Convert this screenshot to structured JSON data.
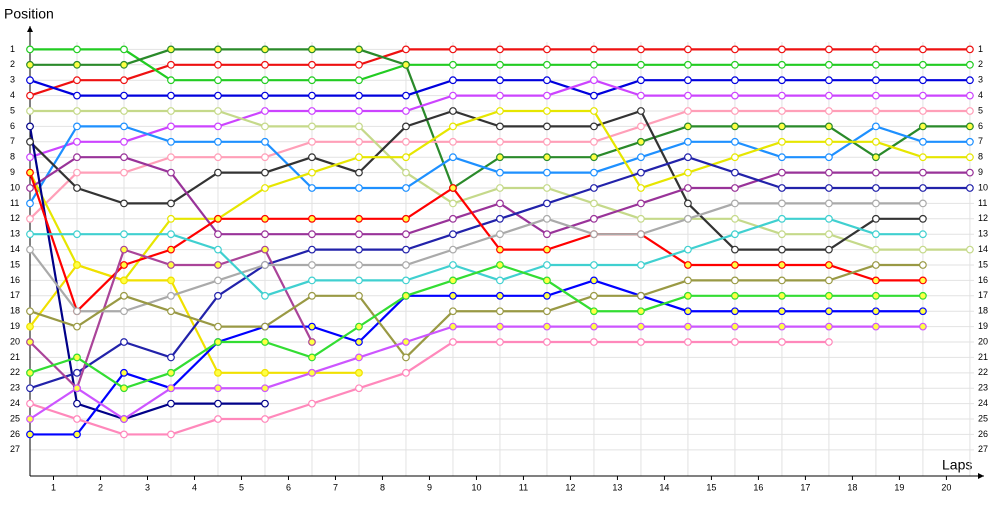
{
  "chart_data": {
    "type": "line",
    "y_title": "Position",
    "x_title": "Laps",
    "x": [
      0,
      1,
      2,
      3,
      4,
      5,
      6,
      7,
      8,
      9,
      10,
      11,
      12,
      13,
      14,
      15,
      16,
      17,
      18,
      19,
      20
    ],
    "xlim": [
      0,
      20.3
    ],
    "xticks": [
      {
        "value": 0.5,
        "label": "1"
      },
      {
        "value": 1.5,
        "label": "2"
      },
      {
        "value": 2.5,
        "label": "3"
      },
      {
        "value": 3.5,
        "label": "4"
      },
      {
        "value": 4.5,
        "label": "5"
      },
      {
        "value": 5.5,
        "label": "6"
      },
      {
        "value": 6.5,
        "label": "7"
      },
      {
        "value": 7.5,
        "label": "8"
      },
      {
        "value": 8.5,
        "label": "9"
      },
      {
        "value": 9.5,
        "label": "10"
      },
      {
        "value": 10.5,
        "label": "11"
      },
      {
        "value": 11.5,
        "label": "12"
      },
      {
        "value": 12.5,
        "label": "13"
      },
      {
        "value": 13.5,
        "label": "14"
      },
      {
        "value": 14.5,
        "label": "15"
      },
      {
        "value": 15.5,
        "label": "16"
      },
      {
        "value": 16.5,
        "label": "17"
      },
      {
        "value": 17.5,
        "label": "18"
      },
      {
        "value": 18.5,
        "label": "19"
      },
      {
        "value": 19.5,
        "label": "20"
      }
    ],
    "ylim": [
      0,
      28.7
    ],
    "y_reversed": true,
    "yticks": [
      1,
      2,
      3,
      4,
      5,
      6,
      7,
      8,
      9,
      10,
      11,
      12,
      13,
      14,
      15,
      16,
      17,
      18,
      19,
      20,
      21,
      22,
      23,
      24,
      25,
      26,
      27
    ],
    "grid": true,
    "series": [
      {
        "color": "#ee1111",
        "marker_fill": "#ffffff",
        "values": [
          4,
          3,
          3,
          2,
          2,
          2,
          2,
          2,
          1,
          1,
          1,
          1,
          1,
          1,
          1,
          1,
          1,
          1,
          1,
          1,
          1
        ]
      },
      {
        "color": "#22cc22",
        "marker_fill": "#ffffff",
        "values": [
          1,
          1,
          1,
          3,
          3,
          3,
          3,
          3,
          2,
          2,
          2,
          2,
          2,
          2,
          2,
          2,
          2,
          2,
          2,
          2,
          2
        ]
      },
      {
        "color": "#2a8a2a",
        "marker_fill": "#ffff44",
        "values": [
          2,
          2,
          2,
          1,
          1,
          1,
          1,
          1,
          2,
          10,
          8,
          8,
          8,
          7,
          6,
          6,
          6,
          6,
          8,
          6,
          6
        ]
      },
      {
        "color": "#0000dd",
        "marker_fill": "#ffffff",
        "values": [
          3,
          4,
          4,
          4,
          4,
          4,
          4,
          4,
          4,
          3,
          3,
          3,
          4,
          3,
          3,
          3,
          3,
          3,
          3,
          3,
          3
        ]
      },
      {
        "color": "#cc44ff",
        "marker_fill": "#ffffff",
        "values": [
          8,
          7,
          7,
          6,
          6,
          5,
          5,
          5,
          5,
          4,
          4,
          4,
          3,
          4,
          4,
          4,
          4,
          4,
          4,
          4,
          4
        ]
      },
      {
        "color": "#ff9fb8",
        "marker_fill": "#ffffff",
        "values": [
          12,
          9,
          9,
          8,
          8,
          8,
          7,
          7,
          7,
          7,
          7,
          7,
          7,
          6,
          5,
          5,
          5,
          5,
          5,
          5,
          5
        ]
      },
      {
        "color": "#c5d98a",
        "marker_fill": "#ffffff",
        "values": [
          5,
          5,
          5,
          5,
          5,
          6,
          6,
          6,
          9,
          11,
          10,
          10,
          11,
          12,
          12,
          12,
          13,
          13,
          14,
          14,
          14
        ]
      },
      {
        "color": "#1e90ff",
        "marker_fill": "#ffffff",
        "values": [
          11,
          6,
          6,
          7,
          7,
          7,
          10,
          10,
          10,
          8,
          9,
          9,
          9,
          8,
          7,
          7,
          8,
          8,
          6,
          7,
          7
        ]
      },
      {
        "color": "#333333",
        "marker_fill": "#ffffff",
        "values": [
          7,
          10,
          11,
          11,
          9,
          9,
          8,
          9,
          6,
          5,
          6,
          6,
          6,
          5,
          11,
          14,
          14,
          14,
          12,
          12,
          null
        ]
      },
      {
        "color": "#e6e600",
        "marker_fill": "#ffffff",
        "values": [
          9,
          15,
          16,
          12,
          12,
          10,
          9,
          8,
          8,
          6,
          5,
          5,
          5,
          10,
          9,
          8,
          7,
          7,
          7,
          8,
          8
        ]
      },
      {
        "color": "#f0e000",
        "marker_fill": "#ffff44",
        "values": [
          19,
          15,
          16,
          16,
          22,
          22,
          22,
          22,
          null,
          null,
          null,
          null,
          null,
          null,
          null,
          null,
          null,
          null,
          null,
          null,
          null
        ]
      },
      {
        "color": "#993399",
        "marker_fill": "#ffffff",
        "values": [
          10,
          8,
          8,
          9,
          13,
          13,
          13,
          13,
          13,
          12,
          11,
          13,
          12,
          11,
          10,
          10,
          9,
          9,
          9,
          9,
          9
        ]
      },
      {
        "color": "#000088",
        "marker_fill": "#ffffff",
        "values": [
          6,
          24,
          25,
          24,
          24,
          24,
          null,
          null,
          null,
          null,
          null,
          null,
          null,
          null,
          null,
          null,
          null,
          null,
          null,
          null,
          null
        ]
      },
      {
        "color": "#0000ff",
        "marker_fill": "#ffff44",
        "values": [
          26,
          26,
          22,
          23,
          20,
          19,
          19,
          20,
          17,
          17,
          17,
          17,
          16,
          17,
          18,
          18,
          18,
          18,
          18,
          18,
          null
        ]
      },
      {
        "color": "#2222aa",
        "marker_fill": "#ffffff",
        "values": [
          23,
          22,
          20,
          21,
          17,
          15,
          14,
          14,
          14,
          13,
          12,
          11,
          10,
          9,
          8,
          9,
          10,
          10,
          10,
          10,
          10
        ]
      },
      {
        "color": "#ff0000",
        "marker_fill": "#ffff44",
        "values": [
          9,
          18,
          15,
          14,
          12,
          12,
          12,
          12,
          12,
          10,
          14,
          14,
          13,
          13,
          15,
          15,
          15,
          15,
          16,
          16,
          null
        ]
      },
      {
        "color": "#aa4499",
        "marker_fill": "#ffff44",
        "values": [
          20,
          23,
          14,
          15,
          15,
          14,
          20,
          null,
          null,
          null,
          null,
          null,
          null,
          null,
          null,
          null,
          null,
          null,
          null,
          null,
          null
        ]
      },
      {
        "color": "#aaaaaa",
        "marker_fill": "#ffffff",
        "values": [
          14,
          18,
          18,
          17,
          16,
          15,
          15,
          15,
          15,
          14,
          13,
          12,
          13,
          13,
          12,
          11,
          11,
          11,
          11,
          11,
          null
        ]
      },
      {
        "color": "#40d0d0",
        "marker_fill": "#ffffff",
        "values": [
          13,
          13,
          13,
          13,
          14,
          17,
          16,
          16,
          16,
          15,
          16,
          15,
          15,
          15,
          14,
          13,
          12,
          12,
          13,
          13,
          null
        ]
      },
      {
        "color": "#999944",
        "marker_fill": "#ffffff",
        "values": [
          18,
          19,
          17,
          18,
          19,
          19,
          17,
          17,
          21,
          18,
          18,
          18,
          17,
          17,
          16,
          16,
          16,
          16,
          15,
          15,
          null
        ]
      },
      {
        "color": "#33dd33",
        "marker_fill": "#ffff44",
        "values": [
          22,
          21,
          23,
          22,
          20,
          20,
          21,
          19,
          17,
          16,
          15,
          16,
          18,
          18,
          17,
          17,
          17,
          17,
          17,
          17,
          null
        ]
      },
      {
        "color": "#ff88bb",
        "marker_fill": "#ffffff",
        "values": [
          24,
          25,
          26,
          26,
          25,
          25,
          24,
          23,
          22,
          20,
          20,
          20,
          20,
          20,
          20,
          20,
          20,
          20,
          null,
          null,
          null
        ]
      },
      {
        "color": "#cc55ff",
        "marker_fill": "#ffff44",
        "values": [
          25,
          23,
          25,
          23,
          23,
          23,
          22,
          21,
          20,
          19,
          19,
          19,
          19,
          19,
          19,
          19,
          19,
          19,
          19,
          19,
          null
        ]
      }
    ]
  }
}
